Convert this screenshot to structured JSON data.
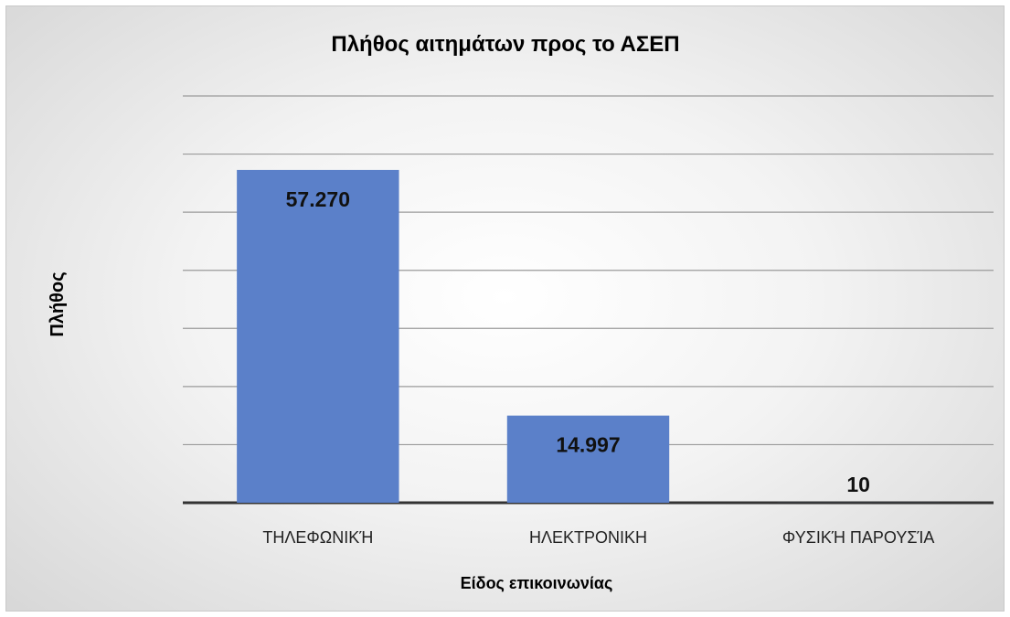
{
  "chart_data": {
    "type": "bar",
    "title": "Πλήθος αιτημάτων προς το ΑΣΕΠ",
    "xlabel": "Είδος επικοινωνίας",
    "ylabel": "Πλήθος",
    "categories": [
      "ΤΗΛΕΦΩΝΙΚΉ",
      "ΗΛΕΚΤΡΟΝΙΚΗ",
      "ΦΥΣΙΚΉ ΠΑΡΟΥΣΊΑ"
    ],
    "values": [
      57270,
      14997,
      10
    ],
    "value_labels": [
      "57.270",
      "14.997",
      "10"
    ],
    "ylim": [
      0,
      70000
    ],
    "y_tick_step": 10000,
    "grid": true,
    "legend": "none",
    "colors": {
      "bar": "#5b80c9",
      "gridline": "#9a9a9a",
      "axis": "#333333"
    }
  }
}
